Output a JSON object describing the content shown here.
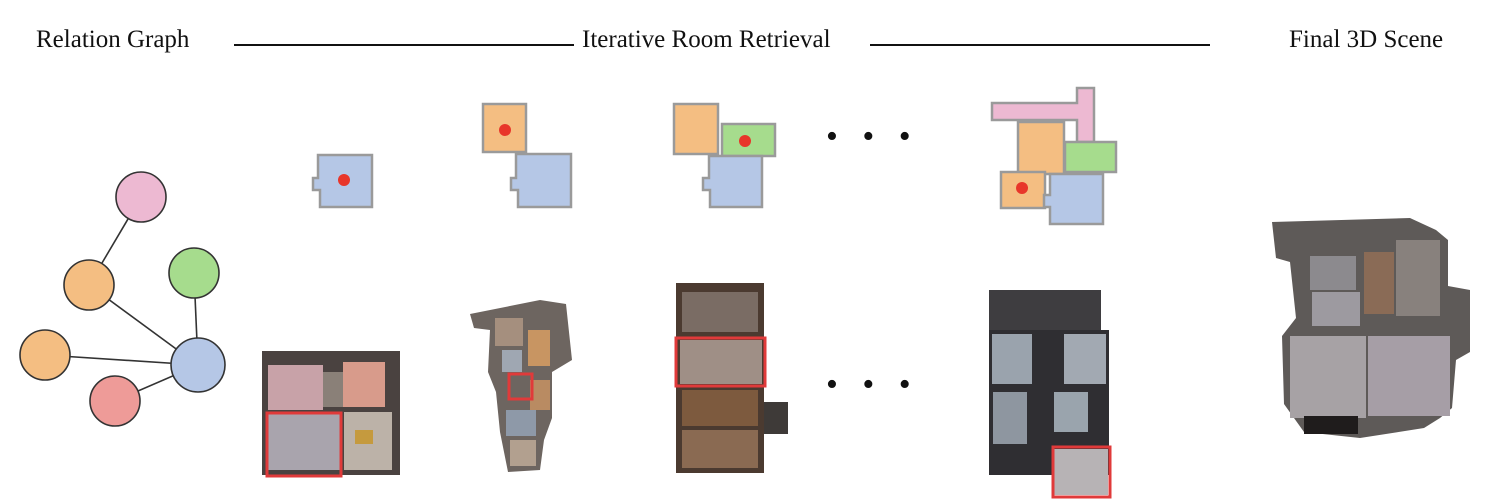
{
  "header": {
    "left_label": "Relation Graph",
    "center_label": "Iterative Room Retrieval",
    "right_label": "Final 3D Scene"
  },
  "ellipsis": "• • •",
  "colors": {
    "pink": "#EDB9D2",
    "orange": "#F4BE82",
    "green": "#A6DC8D",
    "blue": "#B5C7E6",
    "red": "#EE9B98",
    "marker": "#E8362A",
    "highlight": "#E03A3A"
  },
  "graph": {
    "nodes": [
      "pink-room",
      "orange-room-upper",
      "green-room",
      "orange-room-lower",
      "blue-room",
      "red-room"
    ],
    "edges": [
      [
        "pink-room",
        "orange-room-upper"
      ],
      [
        "orange-room-upper",
        "blue-room"
      ],
      [
        "green-room",
        "blue-room"
      ],
      [
        "orange-room-lower",
        "blue-room"
      ],
      [
        "red-room",
        "blue-room"
      ]
    ]
  },
  "retrieval_steps": [
    {
      "step": 1,
      "rooms": [
        "blue"
      ],
      "active": "blue"
    },
    {
      "step": 2,
      "rooms": [
        "orange",
        "blue"
      ],
      "active": "orange"
    },
    {
      "step": 3,
      "rooms": [
        "orange",
        "green",
        "blue"
      ],
      "active": "green"
    },
    {
      "step": 4,
      "rooms": [
        "pink",
        "orange",
        "green",
        "orange",
        "blue"
      ],
      "active": "orange"
    }
  ]
}
